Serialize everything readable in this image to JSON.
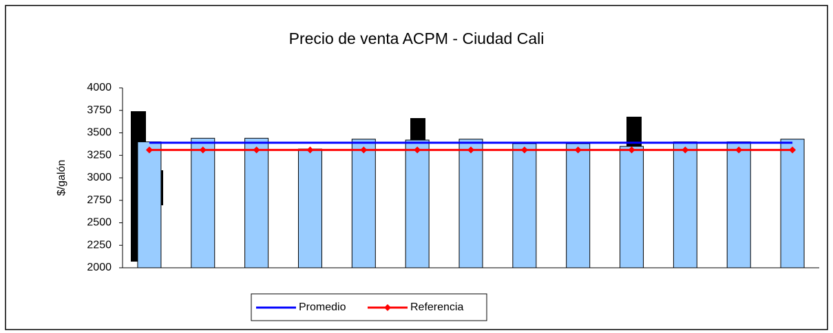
{
  "chart_data": {
    "type": "bar",
    "title": "Precio de venta ACPM - Ciudad Cali",
    "ylabel": "$/galón",
    "values": [
      3400,
      3440,
      3440,
      3320,
      3430,
      3420,
      3430,
      3380,
      3380,
      3350,
      3400,
      3400,
      3430
    ],
    "color": "#99ccff",
    "series": [
      {
        "name": "Promedio",
        "type": "line",
        "color": "#0000ff",
        "marker": false,
        "values": [
          3390,
          3390,
          3390,
          3390,
          3390,
          3390,
          3390,
          3390,
          3390,
          3390,
          3390,
          3390,
          3390
        ]
      },
      {
        "name": "Referencia",
        "type": "line",
        "color": "#ff0000",
        "marker": true,
        "values": [
          3310,
          3310,
          3310,
          3310,
          3310,
          3310,
          3310,
          3310,
          3310,
          3310,
          3310,
          3310,
          3310
        ]
      }
    ],
    "ylim": [
      2000,
      4000
    ],
    "yticks": [
      2000,
      2250,
      2500,
      2750,
      3000,
      3250,
      3500,
      3750,
      4000
    ],
    "grid": false,
    "legend": "bottom"
  }
}
